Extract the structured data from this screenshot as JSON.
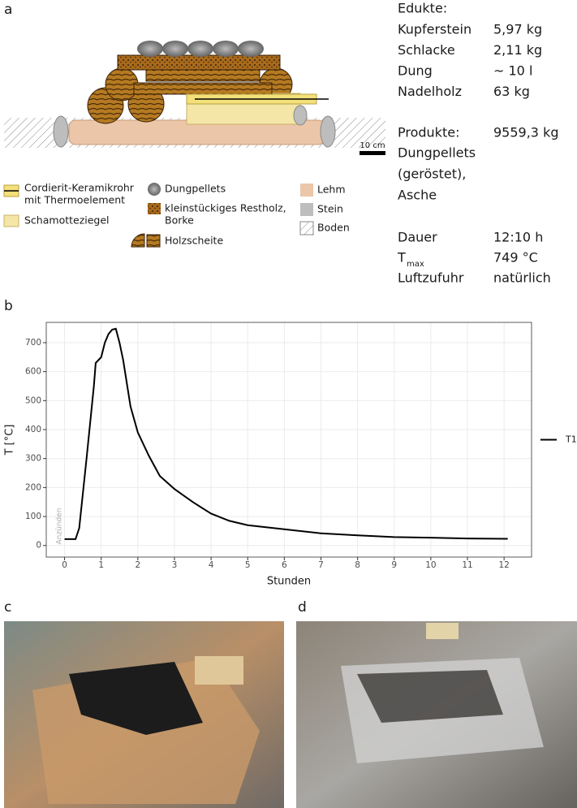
{
  "panel_a": {
    "label": "a",
    "scale_bar": "10 cm",
    "legend": [
      [
        "Cordierit-Keramikrohr",
        "mit Thermoelement"
      ],
      [
        "Schamotteziegel"
      ],
      [
        "Dungpellets"
      ],
      [
        "kleinstückiges Restholz,",
        "Borke"
      ],
      [
        "Holzscheite"
      ],
      [
        "Lehm"
      ],
      [
        "Stein"
      ],
      [
        "Boden"
      ]
    ],
    "table": {
      "edukte_heading": "Edukte:",
      "edukte": [
        [
          "Kupferstein",
          "5,97 kg"
        ],
        [
          "Schlacke",
          "2,11 kg"
        ],
        [
          "Dung",
          "~ 10 l"
        ],
        [
          "Nadelholz",
          "63 kg"
        ]
      ],
      "produkte_heading": "Produkte:",
      "produkte_mass": "9559,3 kg",
      "produkte": [
        "Dungpellets",
        "(geröstet),",
        "Asche"
      ],
      "dauer": [
        "Dauer",
        "12:10 h"
      ],
      "tmax": {
        "symbol": "T",
        "subscript": "max",
        "value": "749 °C"
      },
      "luft": [
        "Luftzufuhr",
        "natürlich"
      ]
    }
  },
  "chart_data": {
    "type": "line",
    "panel_label": "b",
    "xlabel": "Stunden",
    "ylabel": "T [°C]",
    "x": [
      0.0,
      0.3,
      0.4,
      0.6,
      0.8,
      0.85,
      1.0,
      1.1,
      1.2,
      1.3,
      1.4,
      1.5,
      1.6,
      1.7,
      1.8,
      2.0,
      2.3,
      2.6,
      3.0,
      3.5,
      4.0,
      4.5,
      5.0,
      6.0,
      7.0,
      8.0,
      9.0,
      10.0,
      11.0,
      12.1
    ],
    "series": [
      {
        "name": "T1",
        "color": "#000000",
        "values": [
          22,
          22,
          60,
          300,
          550,
          630,
          650,
          700,
          730,
          745,
          748,
          700,
          640,
          560,
          480,
          390,
          310,
          240,
          195,
          150,
          110,
          85,
          70,
          56,
          42,
          35,
          29,
          27,
          24,
          23
        ]
      }
    ],
    "xlim": [
      -0.5,
      12.75
    ],
    "ylim": [
      -40,
      770
    ],
    "xticks": [
      0,
      1,
      2,
      3,
      4,
      5,
      6,
      7,
      8,
      9,
      10,
      11,
      12
    ],
    "yticks": [
      0,
      100,
      200,
      300,
      400,
      500,
      600,
      700
    ],
    "grid": true,
    "annotations": [
      "Anzünden"
    ]
  },
  "panel_c": {
    "label": "c"
  },
  "panel_d": {
    "label": "d"
  }
}
